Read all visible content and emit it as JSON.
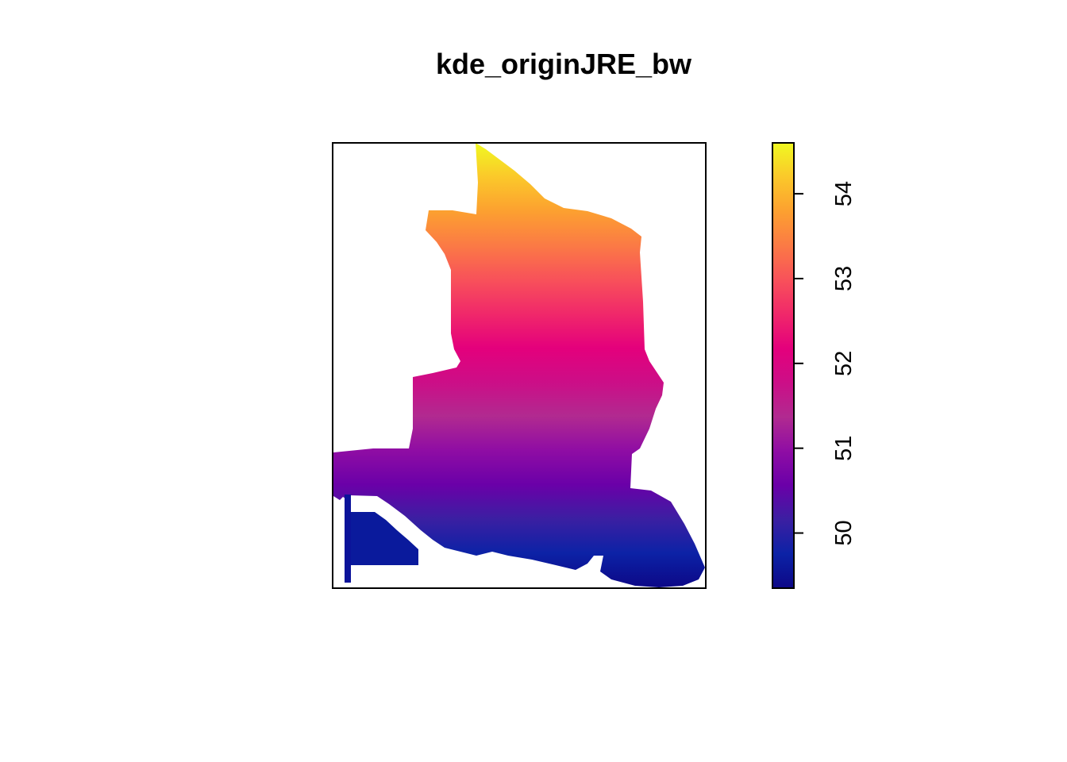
{
  "chart_data": {
    "type": "heatmap",
    "title": "kde_originJRE_bw",
    "xlabel": "",
    "ylabel": "",
    "axes_shown": false,
    "legend": {
      "type": "colorbar",
      "placement": "right",
      "range": [
        49.35,
        54.6
      ],
      "ticks": [
        50,
        51,
        52,
        53,
        54
      ],
      "tick_labels": [
        "50",
        "51",
        "52",
        "53",
        "54"
      ],
      "palette": [
        "#0d0887",
        "#0c22a6",
        "#3b1fa2",
        "#6a00a8",
        "#8f0da4",
        "#b12a90",
        "#cc0e87",
        "#e4007c",
        "#f0286a",
        "#f8515a",
        "#fb7a45",
        "#fca030",
        "#fbc82a",
        "#f0f921"
      ]
    },
    "description_values": {
      "min_region_value": 49.5,
      "max_region_value": 54.6
    }
  }
}
